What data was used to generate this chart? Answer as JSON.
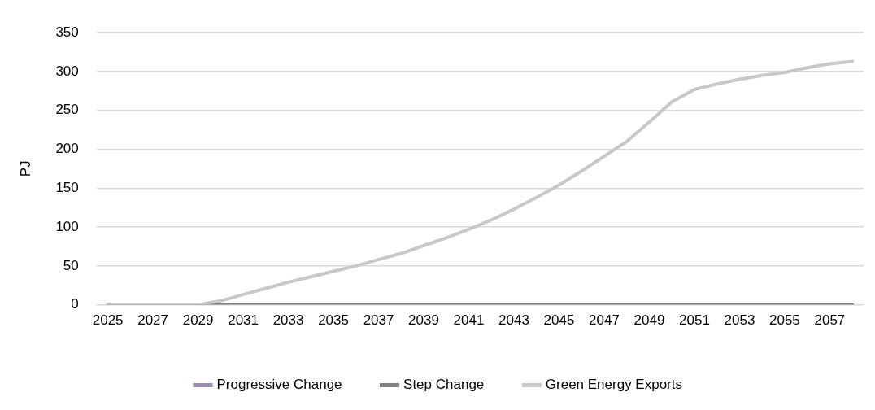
{
  "chart_data": {
    "type": "line",
    "ylabel": "PJ",
    "categories": [
      "2025",
      null,
      "2027",
      null,
      "2029",
      null,
      "2031",
      null,
      "2033",
      null,
      "2035",
      null,
      "2037",
      null,
      "2039",
      null,
      "2041",
      null,
      "2043",
      null,
      "2045",
      null,
      "2047",
      null,
      "2049",
      null,
      "2051",
      null,
      "2053",
      null,
      "2055",
      null,
      "2057",
      null
    ],
    "series": [
      {
        "name": "Progressive Change",
        "color": "#9f86c4",
        "values": [
          null,
          null,
          null,
          null,
          null,
          null,
          null,
          null,
          null,
          null,
          null,
          null,
          null,
          null,
          null,
          null,
          null,
          null,
          null,
          null,
          null,
          null,
          null,
          null,
          null,
          null,
          null,
          null,
          null,
          null,
          null,
          null,
          null,
          null
        ]
      },
      {
        "name": "Step Change",
        "color": "#7f7f7f",
        "values": [
          0,
          0,
          0,
          0,
          0,
          0,
          0,
          0,
          0,
          0,
          0,
          0,
          0,
          0,
          0,
          0,
          0,
          0,
          0,
          0,
          0,
          0,
          0,
          0,
          0,
          0,
          0,
          0,
          0,
          0,
          0,
          0,
          0,
          0
        ]
      },
      {
        "name": "Green Energy Exports",
        "color": "#c8c8c8",
        "values": [
          0,
          0,
          0,
          0,
          0,
          5,
          13,
          21,
          29,
          36,
          43,
          50,
          58,
          66,
          76,
          86,
          97,
          109,
          123,
          138,
          154,
          172,
          191,
          210,
          235,
          261,
          277,
          284,
          290,
          295,
          299,
          305,
          310,
          313
        ]
      }
    ],
    "ylim": [
      0,
      350
    ],
    "yticks": [
      0,
      50,
      100,
      150,
      200,
      250,
      300,
      350
    ],
    "grid": "y",
    "legend": "bottom",
    "marker": "none",
    "line_style": "solid"
  }
}
